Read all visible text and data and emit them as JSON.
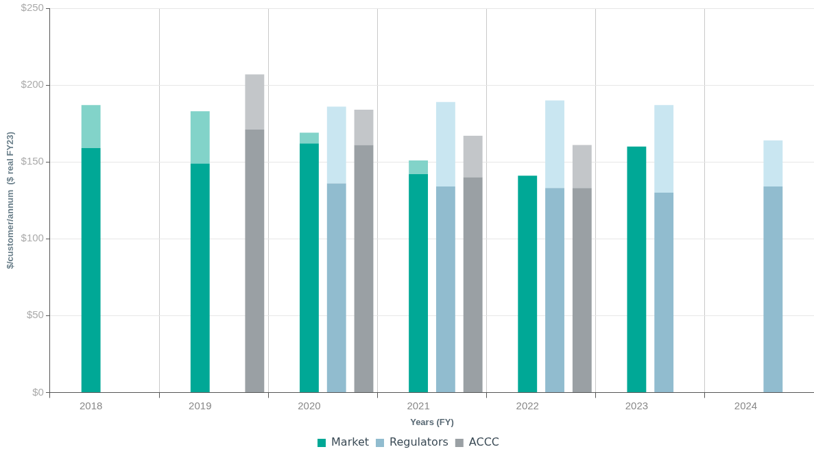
{
  "chart_data": {
    "type": "bar",
    "stacked": true,
    "xlabel": "Years (FY)",
    "ylabel": "$/customer/annum  ($ real FY23)",
    "categories": [
      null,
      "2018",
      null,
      null,
      null,
      "2019",
      null,
      null,
      null,
      "2020",
      null,
      null,
      null,
      "2021",
      null,
      null,
      null,
      "2022",
      null,
      null,
      null,
      "2023",
      null,
      null,
      null,
      "2024",
      null,
      null
    ],
    "series": [
      {
        "name": "Market",
        "color": "#00a896",
        "values": [
          null,
          159,
          null,
          null,
          null,
          149,
          null,
          null,
          null,
          162,
          null,
          null,
          null,
          142,
          null,
          null,
          null,
          141,
          null,
          null,
          null,
          160,
          null,
          null,
          null,
          null,
          null,
          null
        ]
      },
      {
        "color": "#82d3c9",
        "values": [
          null,
          28,
          null,
          null,
          null,
          34,
          null,
          null,
          null,
          7,
          null,
          null,
          null,
          9,
          null,
          null,
          null,
          null,
          null,
          null,
          null,
          null,
          null,
          null,
          null,
          null,
          null,
          null
        ]
      },
      {
        "name": "Regulators",
        "color": "#91bccf",
        "values": [
          null,
          null,
          null,
          null,
          null,
          null,
          null,
          null,
          null,
          null,
          136,
          null,
          null,
          null,
          134,
          null,
          null,
          null,
          133,
          null,
          null,
          null,
          130,
          null,
          null,
          null,
          134,
          null
        ]
      },
      {
        "color": "#c9e6f1",
        "values": [
          null,
          null,
          null,
          null,
          null,
          null,
          null,
          null,
          null,
          null,
          50,
          null,
          null,
          null,
          55,
          null,
          null,
          null,
          57,
          null,
          null,
          null,
          57,
          null,
          null,
          null,
          30,
          null
        ]
      },
      {
        "name": "ACCC",
        "color": "#9aa0a4",
        "values": [
          null,
          null,
          null,
          null,
          null,
          null,
          null,
          171,
          null,
          null,
          null,
          161,
          null,
          null,
          null,
          140,
          null,
          null,
          null,
          133,
          null,
          null,
          null,
          null,
          null,
          null,
          null,
          null
        ]
      },
      {
        "color": "#c3c6c9",
        "values": [
          null,
          null,
          null,
          null,
          null,
          null,
          null,
          36,
          null,
          null,
          null,
          23,
          null,
          null,
          null,
          27,
          null,
          null,
          null,
          28,
          null,
          null,
          null,
          null,
          null,
          null,
          null,
          null
        ]
      }
    ],
    "ylim": [
      0,
      250
    ],
    "yticks": [
      {
        "value": 0,
        "label": "$0"
      },
      {
        "value": 50,
        "label": "$50"
      },
      {
        "value": 100,
        "label": "$100"
      },
      {
        "value": 150,
        "label": "$150"
      },
      {
        "value": 200,
        "label": "$200"
      },
      {
        "value": 250,
        "label": "$250"
      }
    ],
    "grid": true,
    "legend": "bottom"
  }
}
